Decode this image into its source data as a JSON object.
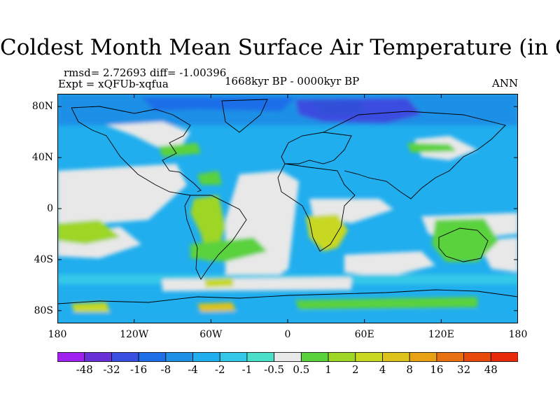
{
  "title": "Coldest Month Mean Surface Air Temperature (in C)",
  "stats": "rmsd= 2.72693  diff= -1.00396",
  "experiment": "Expt = xQFUb-xqfua",
  "period": "1668kyr BP - 0000kyr BP",
  "season": "ANN",
  "map": {
    "projection": "cylindrical equidistant",
    "lat_range": [
      -90,
      90
    ],
    "lon_range": [
      -180,
      180
    ],
    "lat_ticks": [
      "80N",
      "40N",
      "0",
      "40S",
      "80S"
    ],
    "lat_tick_values": [
      80,
      40,
      0,
      -40,
      -80
    ],
    "lon_ticks": [
      "180",
      "120W",
      "60W",
      "0",
      "60E",
      "120E",
      "180"
    ],
    "lon_tick_values": [
      -180,
      -120,
      -60,
      0,
      60,
      120,
      180
    ],
    "coastlines": true
  },
  "colorbar": {
    "labels": [
      "-48",
      "-32",
      "-16",
      "-8",
      "-4",
      "-2",
      "-1",
      "-0.5",
      "0.5",
      "1",
      "2",
      "4",
      "8",
      "16",
      "32",
      "48"
    ],
    "colors": [
      "#a020f0",
      "#6a30d8",
      "#3a4ee0",
      "#1e6ee8",
      "#1e90e6",
      "#20aeee",
      "#34c8e8",
      "#4ae0c8",
      "#e8e8e8",
      "#5ad23c",
      "#9ed628",
      "#c8d820",
      "#dcc21a",
      "#e8a014",
      "#e87010",
      "#e84a0c",
      "#e82a0a"
    ]
  }
}
